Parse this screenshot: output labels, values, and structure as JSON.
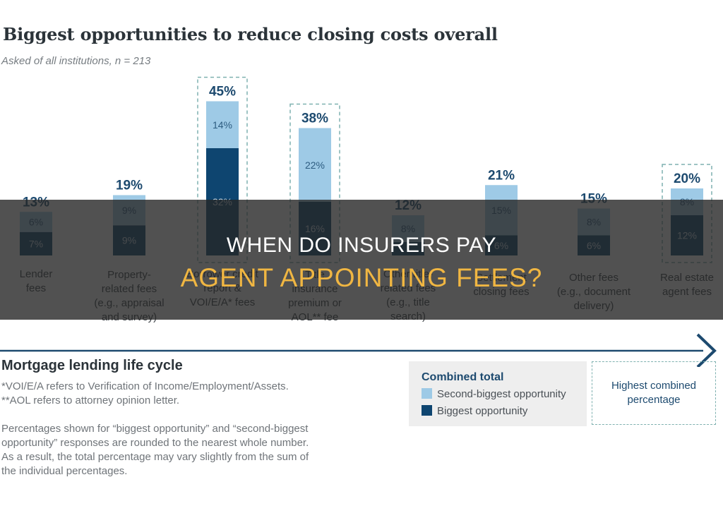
{
  "chart_data": {
    "type": "bar",
    "title": "Biggest opportunities to reduce closing costs overall",
    "subtitle": "Asked of all institutions, n = 213",
    "xlabel": "Mortgage lending life cycle",
    "ylabel": "",
    "categories": [
      [
        "Lender",
        "fees"
      ],
      [
        "Property-",
        "related fees",
        "(e.g., appraisal",
        "and survey)"
      ],
      [
        "Borrower credit",
        "report &",
        "VOI/E/A* fees"
      ],
      [
        "Title",
        "insurance",
        "premium or",
        "AOL** fee"
      ],
      [
        "Other title-",
        "related fees",
        "(e.g., title",
        "search)"
      ],
      [
        "Settlement",
        "closing fees"
      ],
      [
        "Other fees",
        "(e.g., document",
        "delivery)"
      ],
      [
        "Real estate",
        "agent fees"
      ]
    ],
    "series": [
      {
        "name": "Biggest opportunity",
        "values": [
          7,
          9,
          32,
          16,
          4,
          6,
          6,
          12
        ],
        "labels": [
          "7%",
          "9%",
          "32%",
          "16%",
          "",
          "6%",
          "6%",
          "12%"
        ],
        "color": "#0e4570"
      },
      {
        "name": "Second-biggest opportunity",
        "values": [
          6,
          9,
          14,
          22,
          8,
          15,
          8,
          8
        ],
        "labels": [
          "6%",
          "9%",
          "14%",
          "22%",
          "8%",
          "15%",
          "8%",
          "8%"
        ],
        "color": "#9ecae6"
      }
    ],
    "totals": [
      "13%",
      "19%",
      "45%",
      "38%",
      "12%",
      "21%",
      "15%",
      "20%"
    ],
    "highlighted": [
      false,
      false,
      true,
      true,
      false,
      false,
      false,
      true
    ],
    "ylim": [
      0,
      50
    ],
    "grid": false,
    "legend_placement": "bottom-right"
  },
  "footnotes": {
    "voi": "*VOI/E/A refers to Verification of Income/Employment/Assets.",
    "aol": "**AOL refers to attorney opinion letter.",
    "rounding": [
      "Percentages shown for “biggest opportunity” and “second-biggest",
      "opportunity” responses are rounded to the nearest whole number.",
      "As a result, the total percentage may vary slightly from the sum of",
      "the individual percentages."
    ]
  },
  "legend": {
    "title": "Combined total",
    "items": [
      {
        "label": "Second-biggest opportunity",
        "color": "#9ecae6"
      },
      {
        "label": "Biggest opportunity",
        "color": "#0e4570"
      }
    ],
    "highest_label": "Highest combined percentage"
  },
  "overlay": {
    "line1": "WHEN DO INSURERS PAY",
    "line2": "AGENT APPOINTING FEES?"
  },
  "colors": {
    "dark_bar": "#0e4570",
    "light_bar": "#9ecae6",
    "highlight_border": "#7fb1b0",
    "headline_accent": "#f0b642",
    "arrow": "#1d4a6f"
  }
}
